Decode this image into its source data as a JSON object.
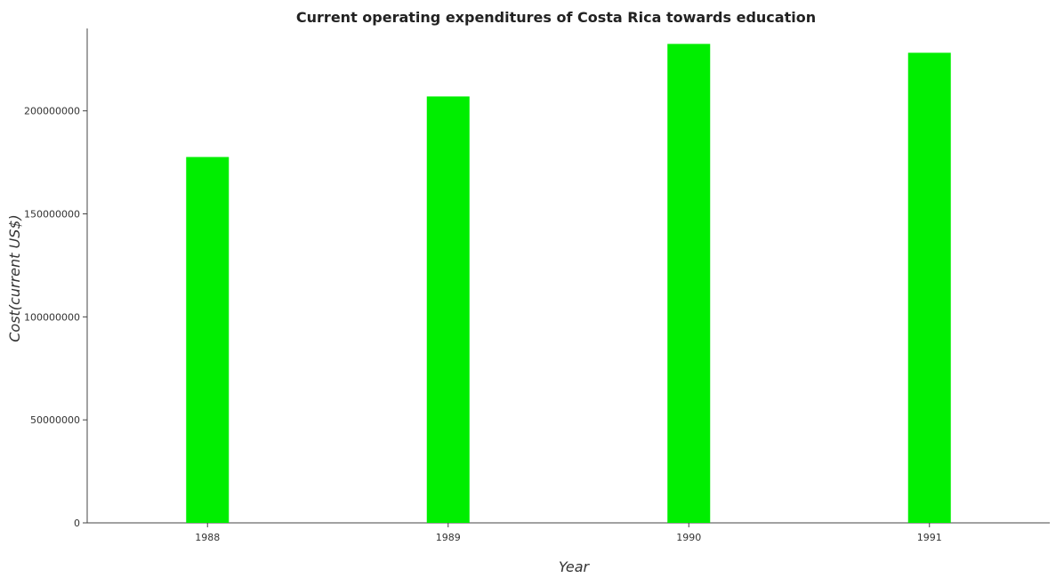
{
  "chart_data": {
    "type": "bar",
    "title": "Current operating expenditures of Costa Rica towards education",
    "xlabel": "Year",
    "ylabel": "Cost(current US$)",
    "categories": [
      "1988",
      "1989",
      "1990",
      "1991"
    ],
    "values": [
      177600000,
      207000000,
      232500000,
      228200000
    ],
    "ylim": [
      0,
      240000000
    ],
    "yticks": [
      0,
      50000000,
      100000000,
      150000000,
      200000000
    ],
    "ytick_labels": [
      "0",
      "50000000",
      "100000000",
      "150000000",
      "200000000"
    ],
    "bar_color": "#00ee00",
    "grid": false,
    "legend": "none"
  }
}
